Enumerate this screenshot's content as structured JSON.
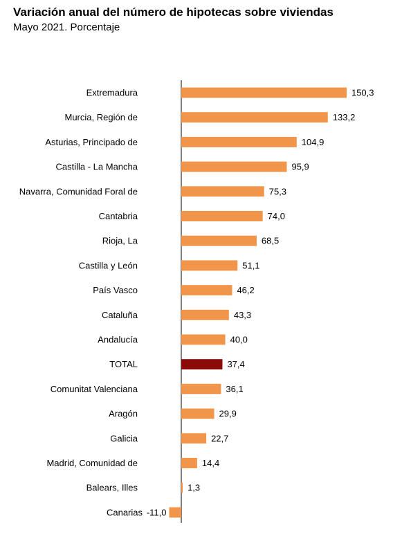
{
  "title": "Variación anual del número de hipotecas sobre viviendas",
  "subtitle": "Mayo 2021. Porcentaje",
  "colors": {
    "bar": "#F0954A",
    "highlight": "#8B0A0A",
    "axis": "#000000"
  },
  "chart_data": {
    "type": "bar",
    "orientation": "horizontal",
    "title": "Variación anual del número de hipotecas sobre viviendas",
    "subtitle": "Mayo 2021. Porcentaje",
    "xlabel": "",
    "ylabel": "",
    "grid": false,
    "legend": "none",
    "categories": [
      "Extremadura",
      "Murcia, Región de",
      "Asturias, Principado de",
      "Castilla - La Mancha",
      "Navarra, Comunidad Foral de",
      "Cantabria",
      "Rioja, La",
      "Castilla y León",
      "País Vasco",
      "Cataluña",
      "Andalucía",
      "TOTAL",
      "Comunitat Valenciana",
      "Aragón",
      "Galicia",
      "Madrid, Comunidad de",
      "Balears, Illes",
      "Canarias"
    ],
    "values": [
      150.3,
      133.2,
      104.9,
      95.9,
      75.3,
      74.0,
      68.5,
      51.1,
      46.2,
      43.3,
      40.0,
      37.4,
      36.1,
      29.9,
      22.7,
      14.4,
      1.3,
      -11.0
    ],
    "value_labels": [
      "150,3",
      "133,2",
      "104,9",
      "95,9",
      "75,3",
      "74,0",
      "68,5",
      "51,1",
      "46,2",
      "43,3",
      "40,0",
      "37,4",
      "36,1",
      "29,9",
      "22,7",
      "14,4",
      "1,3",
      "-11,0"
    ],
    "highlight_category": "TOTAL"
  }
}
